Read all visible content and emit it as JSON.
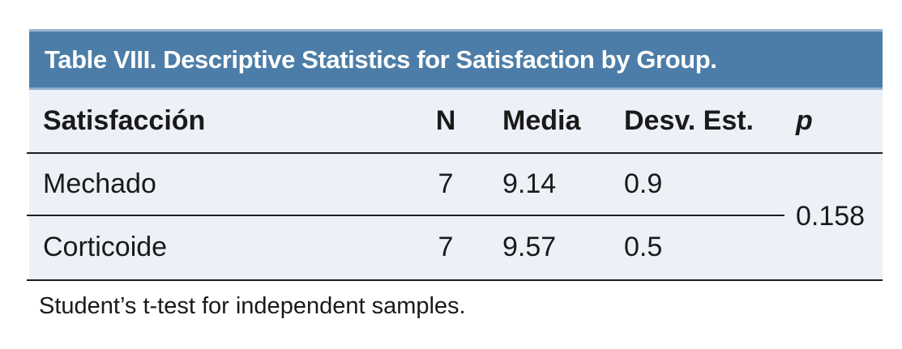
{
  "table": {
    "title": "Table VIII. Descriptive Statistics for Satisfaction by Group.",
    "columns": {
      "group": "Satisfacción",
      "n": "N",
      "media": "Media",
      "desv_est": "Desv. Est.",
      "p": "p"
    },
    "rows": [
      {
        "group": "Mechado",
        "n": "7",
        "media": "9.14",
        "desv_est": "0.9"
      },
      {
        "group": "Corticoide",
        "n": "7",
        "media": "9.57",
        "desv_est": "0.5"
      }
    ],
    "p_value": "0.158",
    "footnote": "Student’s t-test for independent samples."
  },
  "colors": {
    "title_bar": "#4C7DA8",
    "title_bar_edge": "#8FAECB",
    "body_bg": "#EDF0F7",
    "rule": "#1C1C26",
    "text": "#1A1A1A",
    "title_text": "#FFFFFF"
  }
}
